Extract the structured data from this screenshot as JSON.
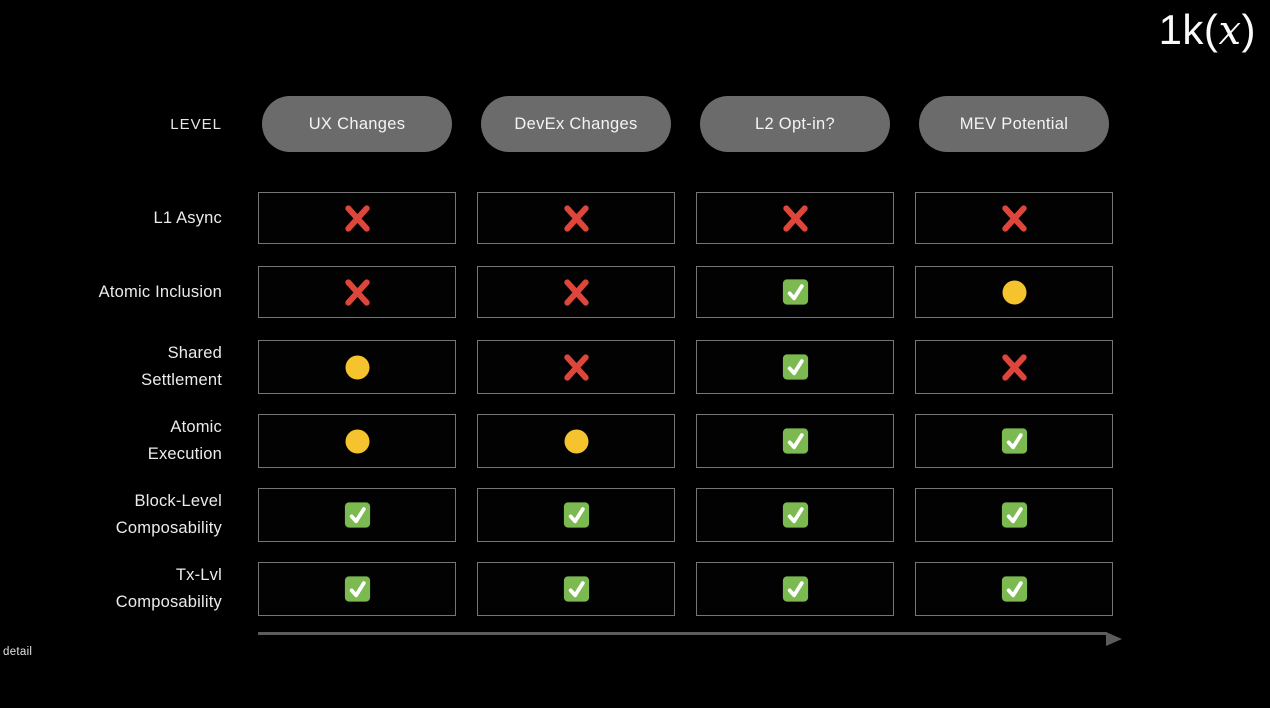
{
  "logo": {
    "prefix": "1k(",
    "x": "x",
    "suffix": ")"
  },
  "header": {
    "level_label": "LEVEL",
    "columns": [
      "UX Changes",
      "DevEx Changes",
      "L2 Opt-in?",
      "MEV Potential"
    ]
  },
  "table": {
    "rows": [
      {
        "label_lines": [
          "L1 Async"
        ],
        "cells": [
          "cross",
          "cross",
          "cross",
          "cross"
        ]
      },
      {
        "label_lines": [
          "Atomic Inclusion"
        ],
        "cells": [
          "cross",
          "cross",
          "check",
          "dot"
        ]
      },
      {
        "label_lines": [
          "Shared",
          "Settlement"
        ],
        "cells": [
          "dot",
          "cross",
          "check",
          "cross"
        ]
      },
      {
        "label_lines": [
          "Atomic",
          "Execution"
        ],
        "cells": [
          "dot",
          "dot",
          "check",
          "check"
        ]
      },
      {
        "label_lines": [
          "Block-Level",
          "Composability"
        ],
        "cells": [
          "check",
          "check",
          "check",
          "check"
        ]
      },
      {
        "label_lines": [
          "Tx-Lvl",
          "Composability"
        ],
        "cells": [
          "check",
          "check",
          "check",
          "check"
        ]
      }
    ]
  },
  "footer": {
    "axis_label": "detail"
  },
  "icons": {
    "cross": "cross-icon",
    "dot": "yellow-dot-icon",
    "check": "check-icon",
    "arrow": "arrow-right-icon"
  },
  "colors": {
    "background": "#000000",
    "pill_bg": "#6b6b6b",
    "cell_border": "#757575",
    "label_text": "#ebebeb",
    "cross": "#df463b",
    "dot": "#f4c32e",
    "check_bg": "#7cb950",
    "check_mark": "#ffffff",
    "arrow": "#5c5c5c"
  }
}
